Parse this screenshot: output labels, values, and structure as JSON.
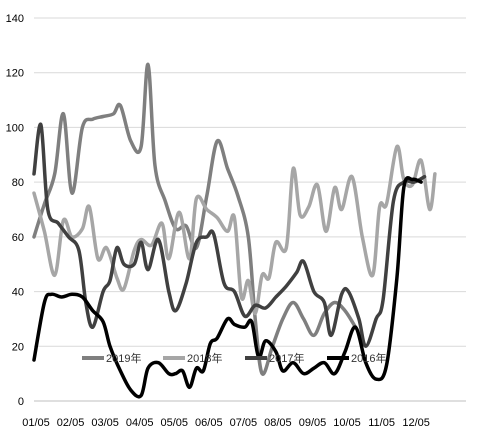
{
  "chart_data": {
    "type": "line",
    "ylim": [
      0,
      140
    ],
    "yticks": [
      0,
      20,
      40,
      60,
      80,
      100,
      120,
      140
    ],
    "xlim": [
      0,
      12.5
    ],
    "xticks": [
      {
        "x": 0,
        "label": "01/05"
      },
      {
        "x": 1,
        "label": "02/05"
      },
      {
        "x": 2,
        "label": "03/05"
      },
      {
        "x": 3,
        "label": "04/05"
      },
      {
        "x": 4,
        "label": "05/05"
      },
      {
        "x": 5,
        "label": "06/05"
      },
      {
        "x": 6,
        "label": "07/05"
      },
      {
        "x": 7,
        "label": "08/05"
      },
      {
        "x": 8,
        "label": "09/05"
      },
      {
        "x": 9,
        "label": "10/05"
      },
      {
        "x": 10,
        "label": "11/05"
      },
      {
        "x": 11,
        "label": "12/05"
      }
    ],
    "grid": "horizontal",
    "legend": "bottom-center",
    "series": [
      {
        "name": "2019年",
        "color": "#7f7f7f",
        "points": [
          [
            0,
            60
          ],
          [
            0.3,
            72
          ],
          [
            0.6,
            83
          ],
          [
            0.85,
            105
          ],
          [
            1.1,
            76
          ],
          [
            1.4,
            100
          ],
          [
            1.7,
            103
          ],
          [
            2.0,
            104
          ],
          [
            2.3,
            105
          ],
          [
            2.5,
            108
          ],
          [
            2.8,
            95
          ],
          [
            3.1,
            93
          ],
          [
            3.3,
            123
          ],
          [
            3.5,
            86
          ],
          [
            3.8,
            73
          ],
          [
            4.1,
            63
          ],
          [
            4.4,
            64
          ],
          [
            4.7,
            56
          ],
          [
            5.0,
            75
          ],
          [
            5.3,
            95
          ],
          [
            5.6,
            85
          ],
          [
            5.9,
            75
          ],
          [
            6.2,
            60
          ],
          [
            6.4,
            30
          ],
          [
            6.6,
            10
          ],
          [
            6.9,
            20
          ],
          [
            7.2,
            30
          ],
          [
            7.5,
            36
          ],
          [
            7.8,
            30
          ],
          [
            8.1,
            24
          ],
          [
            8.4,
            32
          ],
          [
            8.7,
            36
          ],
          [
            9.0,
            33
          ],
          [
            9.3,
            27
          ]
        ]
      },
      {
        "name": "2018年",
        "color": "#a6a6a6",
        "points": [
          [
            0,
            76
          ],
          [
            0.3,
            62
          ],
          [
            0.6,
            46
          ],
          [
            0.85,
            66
          ],
          [
            1.1,
            60
          ],
          [
            1.4,
            63
          ],
          [
            1.6,
            71
          ],
          [
            1.85,
            52
          ],
          [
            2.1,
            56
          ],
          [
            2.4,
            45
          ],
          [
            2.6,
            41
          ],
          [
            2.9,
            55
          ],
          [
            3.1,
            59
          ],
          [
            3.4,
            57
          ],
          [
            3.7,
            65
          ],
          [
            3.9,
            52
          ],
          [
            4.2,
            69
          ],
          [
            4.5,
            52
          ],
          [
            4.7,
            74
          ],
          [
            5.0,
            70
          ],
          [
            5.3,
            67
          ],
          [
            5.6,
            62
          ],
          [
            5.8,
            67
          ],
          [
            6.0,
            38
          ],
          [
            6.2,
            44
          ],
          [
            6.4,
            32
          ],
          [
            6.6,
            46
          ],
          [
            6.8,
            45
          ],
          [
            7.0,
            58
          ],
          [
            7.3,
            56
          ],
          [
            7.5,
            85
          ],
          [
            7.7,
            68
          ],
          [
            7.95,
            71
          ],
          [
            8.2,
            79
          ],
          [
            8.45,
            62
          ],
          [
            8.7,
            78
          ],
          [
            8.9,
            70
          ],
          [
            9.2,
            82
          ],
          [
            9.5,
            60
          ],
          [
            9.8,
            46
          ],
          [
            10.0,
            71
          ],
          [
            10.2,
            72
          ],
          [
            10.5,
            93
          ],
          [
            10.7,
            81
          ],
          [
            10.95,
            79
          ],
          [
            11.2,
            88
          ],
          [
            11.45,
            70
          ],
          [
            11.6,
            83
          ]
        ]
      },
      {
        "name": "2017年",
        "color": "#404040",
        "points": [
          [
            0,
            83
          ],
          [
            0.2,
            101
          ],
          [
            0.4,
            70
          ],
          [
            0.7,
            65
          ],
          [
            1.0,
            60
          ],
          [
            1.3,
            55
          ],
          [
            1.5,
            36
          ],
          [
            1.7,
            27
          ],
          [
            2.0,
            40
          ],
          [
            2.2,
            44
          ],
          [
            2.4,
            56
          ],
          [
            2.6,
            50
          ],
          [
            2.9,
            50
          ],
          [
            3.1,
            58
          ],
          [
            3.3,
            48
          ],
          [
            3.6,
            59
          ],
          [
            3.9,
            40
          ],
          [
            4.1,
            33
          ],
          [
            4.4,
            43
          ],
          [
            4.7,
            58
          ],
          [
            5.0,
            60
          ],
          [
            5.2,
            61
          ],
          [
            5.5,
            43
          ],
          [
            5.8,
            40
          ],
          [
            6.1,
            31
          ],
          [
            6.4,
            35
          ],
          [
            6.7,
            34
          ],
          [
            7.0,
            38
          ],
          [
            7.3,
            42
          ],
          [
            7.6,
            47
          ],
          [
            7.8,
            51
          ],
          [
            8.1,
            40
          ],
          [
            8.4,
            36
          ],
          [
            8.6,
            24
          ],
          [
            8.9,
            39
          ],
          [
            9.1,
            40
          ],
          [
            9.4,
            30
          ],
          [
            9.6,
            20
          ],
          [
            9.9,
            30
          ],
          [
            10.1,
            37
          ],
          [
            10.4,
            73
          ],
          [
            10.7,
            80
          ],
          [
            11.0,
            80
          ],
          [
            11.3,
            82
          ]
        ]
      },
      {
        "name": "2016年",
        "color": "#000000",
        "points": [
          [
            0,
            15
          ],
          [
            0.3,
            36
          ],
          [
            0.5,
            39
          ],
          [
            0.8,
            38
          ],
          [
            1.1,
            39
          ],
          [
            1.4,
            38
          ],
          [
            1.7,
            33
          ],
          [
            2.0,
            29
          ],
          [
            2.2,
            20
          ],
          [
            2.5,
            11
          ],
          [
            2.8,
            4
          ],
          [
            3.1,
            2
          ],
          [
            3.3,
            12
          ],
          [
            3.6,
            14
          ],
          [
            3.9,
            10
          ],
          [
            4.1,
            10
          ],
          [
            4.3,
            11
          ],
          [
            4.5,
            5
          ],
          [
            4.7,
            12
          ],
          [
            4.9,
            11
          ],
          [
            5.1,
            21
          ],
          [
            5.3,
            23
          ],
          [
            5.6,
            30
          ],
          [
            5.8,
            28
          ],
          [
            6.1,
            27
          ],
          [
            6.3,
            29
          ],
          [
            6.5,
            16
          ],
          [
            6.7,
            22
          ],
          [
            7.0,
            18
          ],
          [
            7.2,
            11
          ],
          [
            7.5,
            14
          ],
          [
            7.8,
            10
          ],
          [
            8.1,
            12
          ],
          [
            8.4,
            14
          ],
          [
            8.7,
            10
          ],
          [
            9.0,
            18
          ],
          [
            9.3,
            27
          ],
          [
            9.6,
            14
          ],
          [
            9.9,
            8
          ],
          [
            10.2,
            13
          ],
          [
            10.5,
            45
          ],
          [
            10.7,
            78
          ],
          [
            10.95,
            81
          ],
          [
            11.2,
            80
          ]
        ]
      }
    ]
  }
}
